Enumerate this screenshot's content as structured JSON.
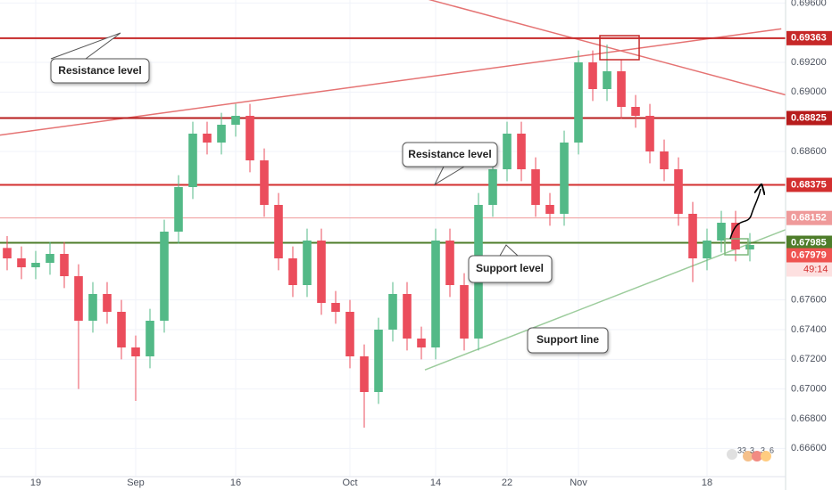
{
  "chart_data": {
    "type": "candlestick",
    "categories": [
      null,
      null,
      "19",
      null,
      null,
      null,
      null,
      null,
      null,
      "Sep",
      null,
      null,
      null,
      null,
      null,
      null,
      "16",
      null,
      null,
      null,
      null,
      null,
      null,
      null,
      "Oct",
      null,
      null,
      null,
      null,
      null,
      "14",
      null,
      null,
      null,
      null,
      "22",
      null,
      null,
      null,
      null,
      "Nov",
      null,
      null,
      null,
      null,
      null,
      null,
      null,
      null,
      "18",
      null,
      null,
      null,
      null,
      null
    ],
    "open": [
      0.6795,
      0.6788,
      0.6782,
      0.6785,
      0.6791,
      0.6776,
      0.6746,
      0.6764,
      0.6752,
      0.6728,
      0.6722,
      0.6746,
      0.6806,
      0.6836,
      0.6872,
      0.6866,
      0.6878,
      0.6884,
      0.6854,
      0.6824,
      0.6788,
      0.677,
      0.68,
      0.6758,
      0.6752,
      0.6722,
      0.6698,
      0.674,
      0.6764,
      0.6734,
      0.6728,
      0.68,
      0.677,
      0.6734,
      0.6824,
      0.6848,
      0.6872,
      0.6848,
      0.6824,
      0.6818,
      0.6866,
      0.692,
      0.6902,
      0.6914,
      0.689,
      0.6884,
      0.686,
      0.6848,
      0.6818,
      0.6788,
      0.68,
      0.6812,
      0.6794,
      null,
      null
    ],
    "high": [
      0.6803,
      0.6796,
      0.6793,
      0.6799,
      0.6799,
      0.6784,
      0.6772,
      0.6772,
      0.676,
      0.6736,
      0.6754,
      0.6814,
      0.6844,
      0.688,
      0.688,
      0.6886,
      0.6892,
      0.6892,
      0.6862,
      0.6832,
      0.6796,
      0.6808,
      0.6808,
      0.6766,
      0.676,
      0.673,
      0.6748,
      0.6772,
      0.6772,
      0.6742,
      0.6808,
      0.6808,
      0.6778,
      0.6832,
      0.6856,
      0.688,
      0.688,
      0.6856,
      0.6832,
      0.6874,
      0.6928,
      0.6928,
      0.6932,
      0.6922,
      0.6898,
      0.6892,
      0.6868,
      0.6856,
      0.6826,
      0.6808,
      0.682,
      0.682,
      0.6805,
      null,
      null
    ],
    "low": [
      0.678,
      0.6774,
      0.6774,
      0.6777,
      0.6768,
      0.67,
      0.6738,
      0.6744,
      0.672,
      0.6692,
      0.6714,
      0.6738,
      0.6798,
      0.6828,
      0.6858,
      0.6858,
      0.687,
      0.6846,
      0.6816,
      0.678,
      0.6762,
      0.6762,
      0.675,
      0.6744,
      0.6714,
      0.6674,
      0.669,
      0.6732,
      0.6726,
      0.672,
      0.672,
      0.6762,
      0.6726,
      0.6726,
      0.6816,
      0.684,
      0.684,
      0.6816,
      0.681,
      0.681,
      0.6858,
      0.6894,
      0.6894,
      0.6882,
      0.6876,
      0.6852,
      0.684,
      0.681,
      0.6772,
      0.678,
      0.6792,
      0.6786,
      0.6786,
      null,
      null
    ],
    "close": [
      0.6788,
      0.6782,
      0.6785,
      0.6791,
      0.6776,
      0.6746,
      0.6764,
      0.6752,
      0.6728,
      0.6722,
      0.6746,
      0.6806,
      0.6836,
      0.6872,
      0.6866,
      0.6878,
      0.6884,
      0.6854,
      0.6824,
      0.6788,
      0.677,
      0.68,
      0.6758,
      0.6752,
      0.6722,
      0.6698,
      0.674,
      0.6764,
      0.6734,
      0.6728,
      0.68,
      0.677,
      0.6734,
      0.6824,
      0.6848,
      0.6872,
      0.6848,
      0.6824,
      0.6818,
      0.6866,
      0.692,
      0.6902,
      0.6914,
      0.689,
      0.6884,
      0.686,
      0.6848,
      0.6818,
      0.6788,
      0.68,
      0.6812,
      0.6794,
      0.6797,
      null,
      null
    ],
    "up_color": "#53b987",
    "down_color": "#eb4d5c",
    "ylim": [
      0.6641,
      0.6962
    ],
    "yticks": [
      {
        "value": 0.696,
        "label": "0.69600"
      },
      {
        "value": 0.692,
        "label": "0.69200"
      },
      {
        "value": 0.69,
        "label": "0.69000"
      },
      {
        "value": 0.686,
        "label": "0.68600"
      },
      {
        "value": 0.676,
        "label": "0.67600"
      },
      {
        "value": 0.674,
        "label": "0.67400"
      },
      {
        "value": 0.672,
        "label": "0.67200"
      },
      {
        "value": 0.67,
        "label": "0.67000"
      },
      {
        "value": 0.668,
        "label": "0.66800"
      },
      {
        "value": 0.666,
        "label": "0.66600"
      }
    ],
    "grid": true,
    "levels": [
      {
        "value": 0.69363,
        "color": "#c62828"
      },
      {
        "value": 0.68825,
        "color": "#b71c1c"
      },
      {
        "value": 0.68375,
        "color": "#d32f2f"
      },
      {
        "value": 0.68152,
        "color": "#ef9a9a"
      },
      {
        "value": 0.67985,
        "color": "#4e7d2a"
      }
    ],
    "current_price": {
      "value": 0.67979,
      "color": "#ef5350",
      "countdown": "49:14"
    },
    "trendlines": [
      {
        "x": [
          -0.5,
          54.2
        ],
        "y": [
          0.6871,
          0.69426
        ],
        "color": "#e57373"
      },
      {
        "x": [
          29.5,
          54.5
        ],
        "y": [
          0.69624,
          0.68981
        ],
        "color": "#e57373"
      },
      {
        "x": [
          29.25,
          54.5
        ],
        "y": [
          0.67129,
          0.68073
        ],
        "color": "#9ccc9c"
      }
    ],
    "annotations": [
      "Resistance level",
      "Resistance level",
      "Support level",
      "Support line"
    ],
    "badges": [
      "33",
      "3",
      "3",
      "6"
    ]
  }
}
